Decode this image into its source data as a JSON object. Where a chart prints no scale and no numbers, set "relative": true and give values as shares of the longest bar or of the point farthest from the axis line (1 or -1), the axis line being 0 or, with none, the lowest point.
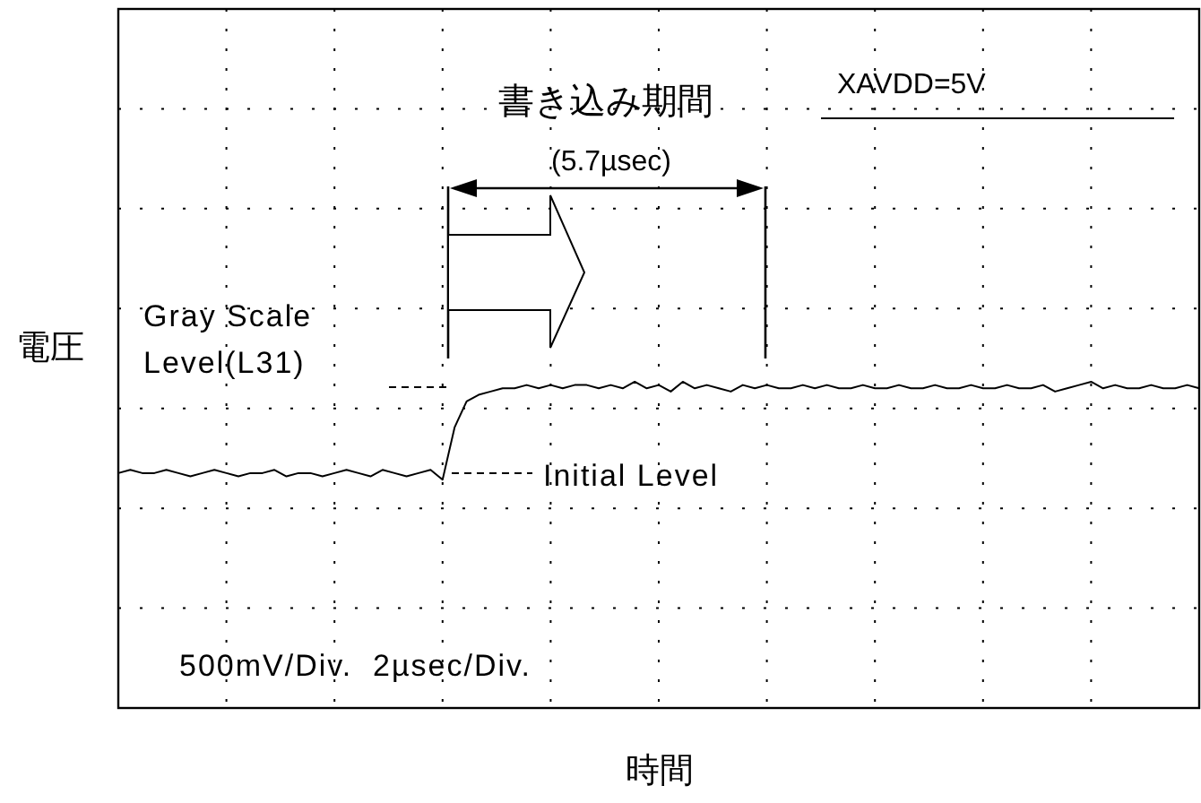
{
  "chart_data": {
    "type": "line",
    "relative": true,
    "xlabel": "時間",
    "ylabel": "電圧",
    "grid": true,
    "marker": "none",
    "line_style": "solid",
    "categories": [
      null,
      null,
      null,
      null,
      null,
      null,
      null,
      null,
      null,
      null,
      null,
      null,
      null,
      null,
      null,
      null,
      null,
      null,
      null,
      null,
      null,
      null,
      null,
      null,
      null,
      null,
      null,
      null,
      null,
      null,
      null,
      null,
      null,
      null,
      null,
      null,
      null,
      null,
      null,
      null,
      null,
      null,
      null,
      null,
      null,
      null,
      null,
      null,
      null,
      null,
      null,
      null,
      null,
      null,
      null,
      null,
      null,
      null,
      null,
      null,
      null,
      null,
      null,
      null,
      null,
      null,
      null,
      null,
      null,
      null,
      null,
      null,
      null,
      null,
      null,
      null,
      null,
      null,
      null,
      null,
      null,
      null,
      null,
      null,
      null,
      null,
      null,
      null,
      null,
      null,
      null
    ],
    "series": [
      {
        "color": "#000000",
        "values": [
          0.72,
          0.73,
          0.72,
          0.72,
          0.73,
          0.72,
          0.71,
          0.72,
          0.73,
          0.72,
          0.71,
          0.72,
          0.72,
          0.73,
          0.71,
          0.72,
          0.72,
          0.71,
          0.72,
          0.73,
          0.72,
          0.71,
          0.73,
          0.72,
          0.71,
          0.72,
          0.73,
          0.7,
          0.86,
          0.94,
          0.96,
          0.97,
          0.98,
          0.98,
          0.99,
          0.98,
          0.99,
          0.98,
          0.99,
          0.99,
          0.98,
          0.99,
          0.98,
          1.0,
          0.98,
          0.99,
          0.97,
          1.0,
          0.98,
          0.99,
          0.98,
          0.97,
          0.99,
          0.98,
          0.99,
          0.98,
          0.98,
          0.99,
          0.98,
          0.99,
          0.98,
          0.98,
          0.99,
          0.98,
          0.98,
          0.99,
          0.98,
          0.98,
          0.99,
          0.98,
          0.98,
          0.99,
          0.98,
          0.98,
          0.99,
          0.98,
          0.98,
          0.99,
          0.97,
          0.98,
          0.99,
          1.0,
          0.98,
          0.99,
          0.98,
          0.98,
          0.99,
          0.98,
          0.98,
          0.99,
          0.98
        ]
      }
    ],
    "annotations": [
      "書き込み期間",
      "(5.7µsec)",
      "XAVDD=5V",
      "Gray Scale Level(L31)",
      "Initial Level",
      "500mV/Div.  2µsec/Div."
    ]
  }
}
